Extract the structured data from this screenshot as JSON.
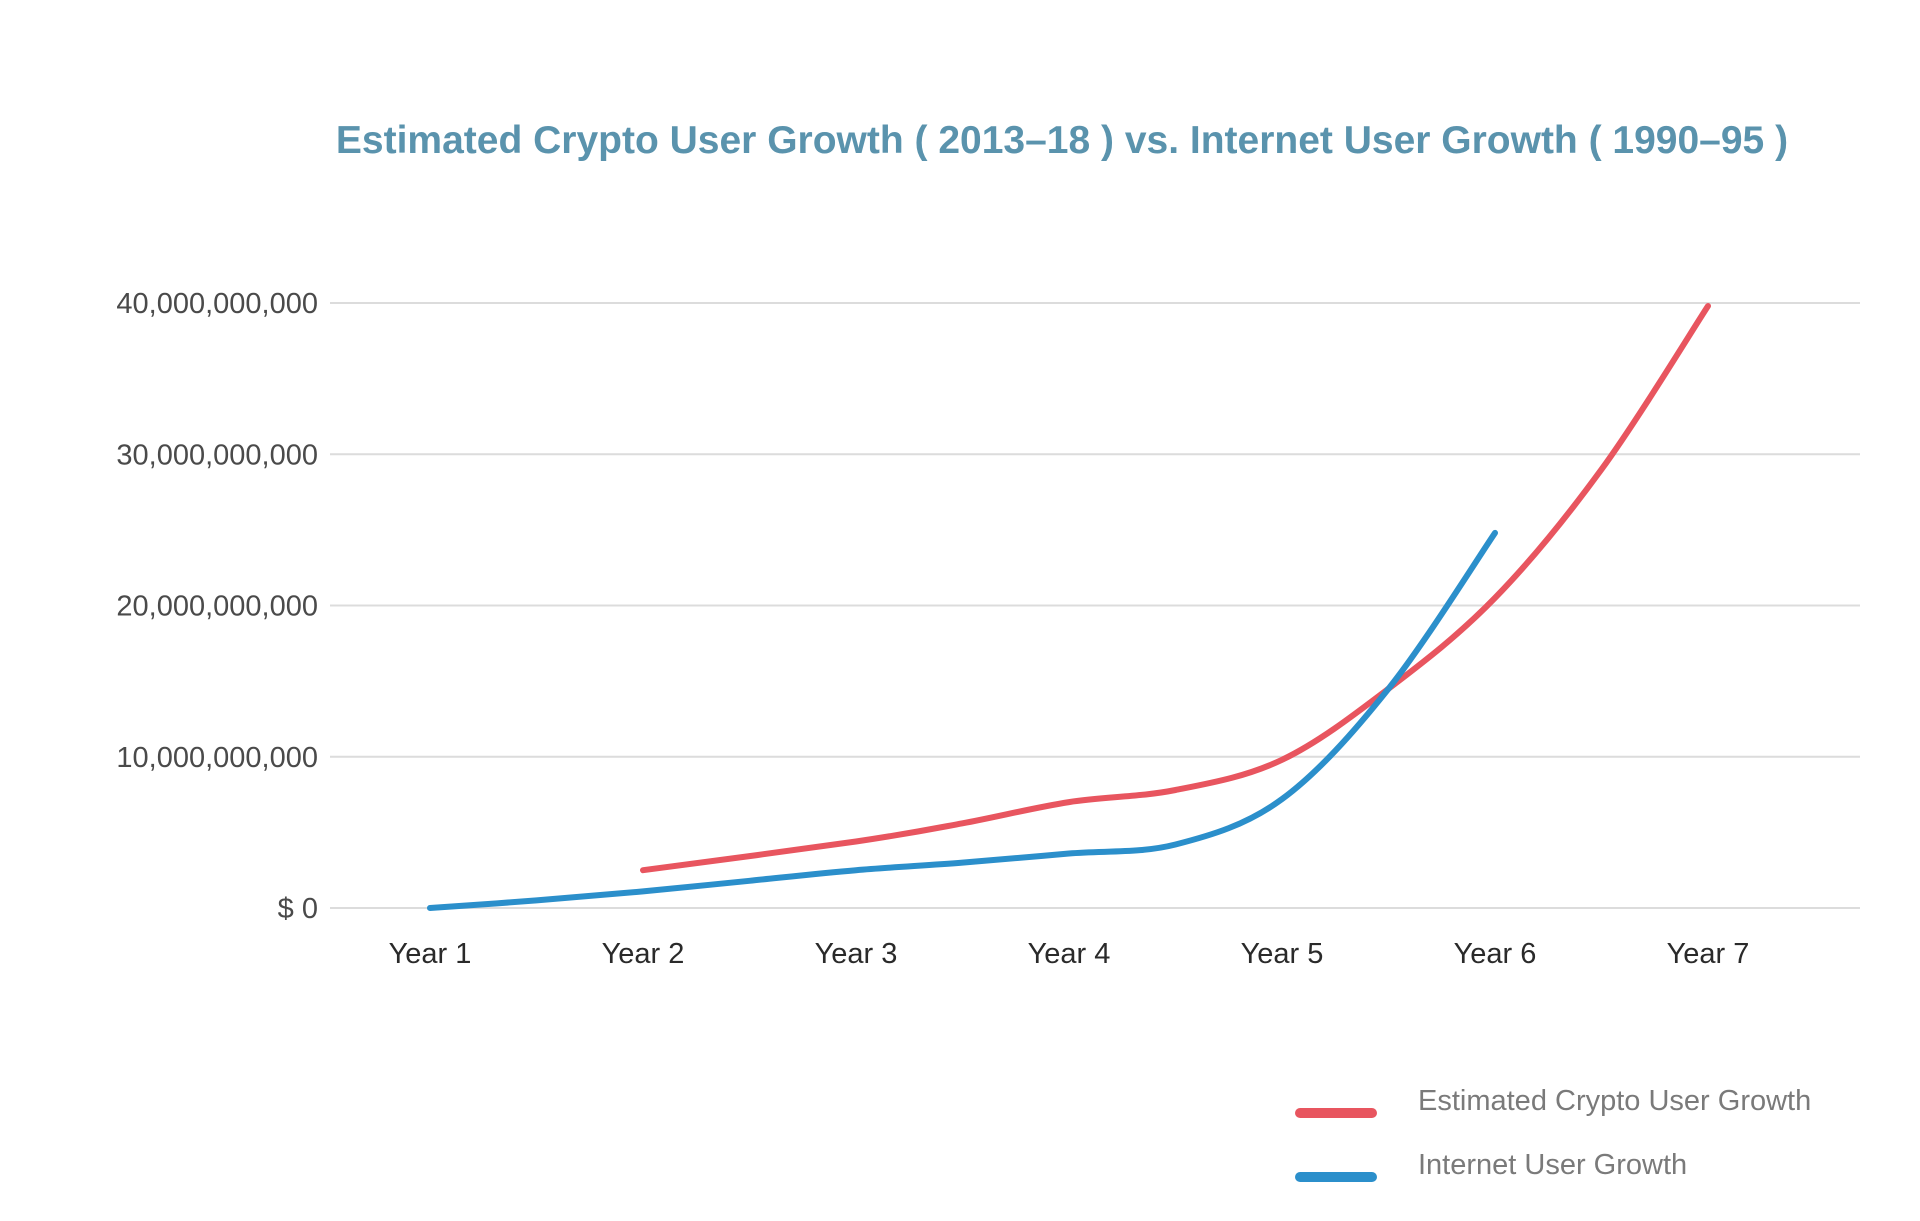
{
  "chart_data": {
    "type": "line",
    "title": "Estimated Crypto User Growth ( 2013–18 ) vs. Internet User Growth ( 1990–95 )",
    "xlabel": "",
    "ylabel": "",
    "categories": [
      "Year 1",
      "Year 2",
      "Year 3",
      "Year 4",
      "Year 5",
      "Year 6",
      "Year 7"
    ],
    "y_ticks": [
      0,
      10000000000,
      20000000000,
      30000000000,
      40000000000
    ],
    "y_tick_labels": [
      "$ 0",
      "10,000,000,000",
      "20,000,000,000",
      "30,000,000,000",
      "40,000,000,000"
    ],
    "ylim": [
      0,
      40000000000
    ],
    "grid": true,
    "legend_position": "bottom-right",
    "series": [
      {
        "name": "Estimated Crypto User Growth",
        "color": "#e8555f",
        "points": [
          [
            2,
            2500000000
          ],
          [
            3,
            4400000000
          ],
          [
            3.5,
            5600000000
          ],
          [
            4,
            7000000000
          ],
          [
            4.5,
            7800000000
          ],
          [
            5,
            9800000000
          ],
          [
            5.5,
            14500000000
          ],
          [
            6,
            20500000000
          ],
          [
            6.5,
            29000000000
          ],
          [
            7,
            39800000000
          ]
        ]
      },
      {
        "name": "Internet User Growth",
        "color": "#2b8fcb",
        "points": [
          [
            1,
            0
          ],
          [
            1.5,
            500000000
          ],
          [
            2,
            1100000000
          ],
          [
            2.5,
            1800000000
          ],
          [
            3,
            2500000000
          ],
          [
            3.5,
            3000000000
          ],
          [
            4,
            3600000000
          ],
          [
            4.5,
            4200000000
          ],
          [
            5,
            7200000000
          ],
          [
            5.5,
            14500000000
          ],
          [
            6,
            24800000000
          ]
        ]
      }
    ]
  }
}
